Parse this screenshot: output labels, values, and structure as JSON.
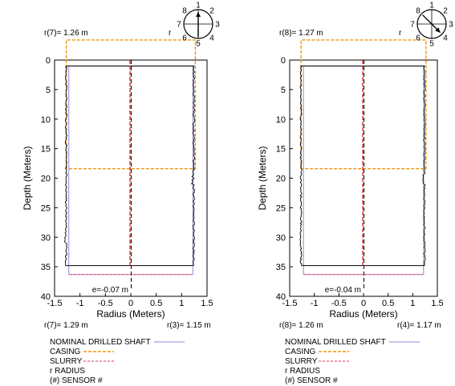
{
  "chart_data": [
    {
      "type": "line",
      "title": "",
      "xlabel": "Radius (Meters)",
      "ylabel": "Depth (Meters)",
      "xlim": [
        -1.5,
        1.5
      ],
      "ylim": [
        40,
        0
      ],
      "xticks": [
        "-1.5",
        "-1",
        "-0.5",
        "0",
        "0.5",
        "1",
        "1.5"
      ],
      "yticks": [
        "0",
        "5",
        "10",
        "15",
        "20",
        "25",
        "30",
        "35",
        "40"
      ],
      "top_left_label": "r(7)= 1.26 m",
      "top_right_label": "r",
      "bottom_left_label": "r(7)= 1.29 m",
      "bottom_right_label": "r(3)= 1.15 m",
      "eccentricity_label": "e=-0.07 m",
      "sensor_arrow_from": 5,
      "sensor_arrow_to": 1,
      "nominal_shaft": {
        "x": [
          -1.22,
          1.22
        ],
        "y": [
          1,
          36.3
        ]
      },
      "casing": {
        "x": [
          -1.27,
          1.27
        ],
        "y": [
          -3.4,
          18.4
        ]
      },
      "slurry": {
        "x": [
          -1.2,
          1.2
        ],
        "y": [
          1,
          36.3
        ]
      },
      "profile_top": 1,
      "profile_bottom": 34.8,
      "left_profile_mean": -1.27,
      "right_profile_mean": 1.24
    },
    {
      "type": "line",
      "title": "",
      "xlabel": "Radius (Meters)",
      "ylabel": "Depth (Meters)",
      "xlim": [
        -1.5,
        1.5
      ],
      "ylim": [
        40,
        0
      ],
      "xticks": [
        "-1.5",
        "-1",
        "-0.5",
        "0",
        "0.5",
        "1",
        "1.5"
      ],
      "yticks": [
        "0",
        "5",
        "10",
        "15",
        "20",
        "25",
        "30",
        "35",
        "40"
      ],
      "top_left_label": "r(8)= 1.27 m",
      "top_right_label": "r",
      "bottom_left_label": "r(8)= 1.26 m",
      "bottom_right_label": "r(4)= 1.17 m",
      "eccentricity_label": "e=-0.04 m",
      "sensor_arrow_from": 8,
      "sensor_arrow_to": 4,
      "nominal_shaft": {
        "x": [
          -1.22,
          1.22
        ],
        "y": [
          1,
          36.3
        ]
      },
      "casing": {
        "x": [
          -1.27,
          1.27
        ],
        "y": [
          -3.4,
          18.4
        ]
      },
      "slurry": {
        "x": [
          -1.2,
          1.2
        ],
        "y": [
          1,
          36.3
        ]
      },
      "profile_top": 1,
      "profile_bottom": 34.8,
      "left_profile_mean": -1.27,
      "right_profile_mean": 1.24
    }
  ],
  "sensor_numbers": [
    "1",
    "2",
    "3",
    "4",
    "5",
    "6",
    "7",
    "8"
  ],
  "legend": {
    "nominal": "NOMINAL DRILLED SHAFT",
    "casing": "CASING",
    "slurry": "SLURRY",
    "radius": "r RADIUS",
    "sensor": "(#) SENSOR #"
  },
  "colors": {
    "nominal": "#8a8ad8",
    "casing": "#f0960a",
    "slurry": "#e8607a",
    "profile": "#000000",
    "center_red": "#c81414"
  }
}
